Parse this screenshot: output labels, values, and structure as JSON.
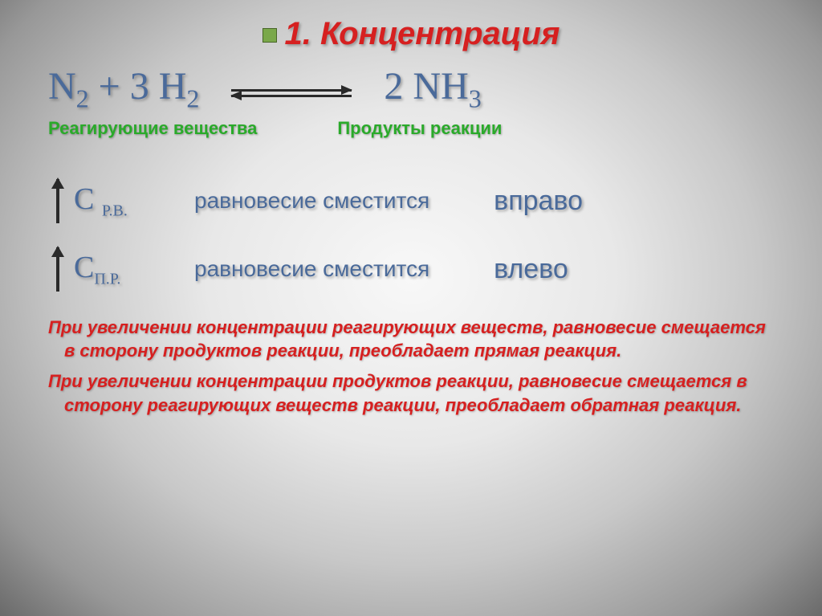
{
  "title": "1. Концентрация",
  "equation": {
    "left_part": "N",
    "left_sub1": "2",
    "plus": " + 3 H",
    "left_sub2": "2",
    "right_coef": "2 NH",
    "right_sub": "3"
  },
  "labels": {
    "reactants": "Реагирующие вещества",
    "products": "Продукты реакции"
  },
  "rule1": {
    "c_prefix": "С ",
    "c_sub": "Р.В.",
    "shift": "равновесие сместится",
    "direction": "вправо"
  },
  "rule2": {
    "c_prefix": "С",
    "c_sub": "П.Р.",
    "shift": "равновесие сместится",
    "direction": "влево"
  },
  "explanation1": "При увеличении концентрации реагирующих веществ, равновесие смещается в сторону продуктов реакции, преобладает прямая реакция.",
  "explanation2": "При увеличении концентрации продуктов реакции, равновесие смещается в сторону реагирующих веществ реакции, преобладает обратная реакция.",
  "colors": {
    "title_color": "#d62020",
    "formula_color": "#4a6a9a",
    "label_color": "#2aaa2a",
    "arrow_color": "#2a2a2a",
    "bullet_color": "#7aa84a"
  }
}
